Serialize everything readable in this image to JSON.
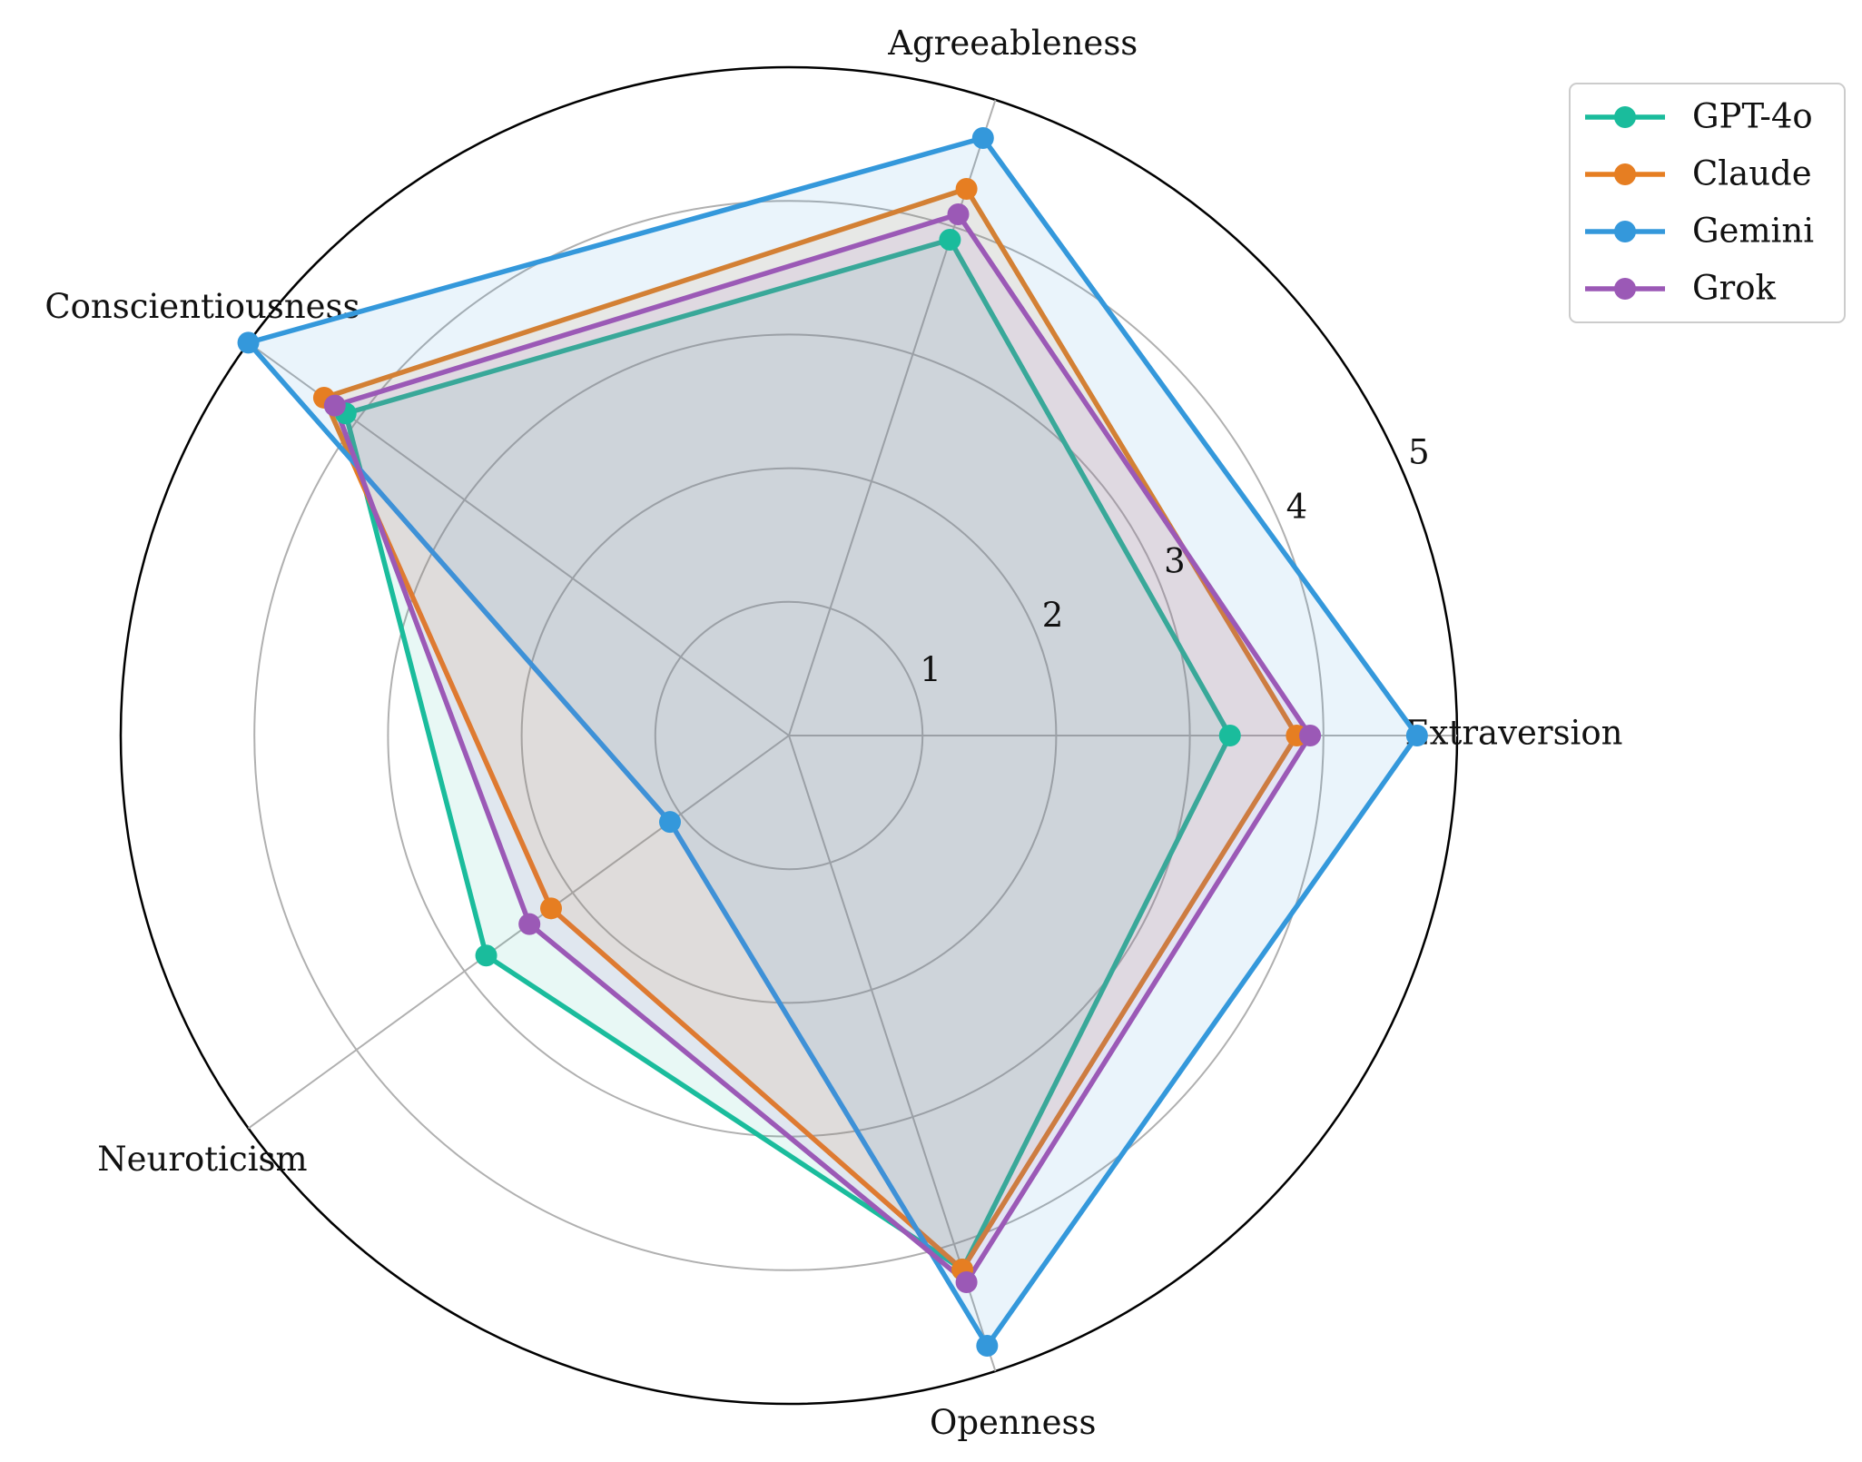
{
  "chart_data": {
    "type": "radar",
    "categories": [
      "Extraversion",
      "Agreeableness",
      "Conscientiousness",
      "Neuroticism",
      "Openness"
    ],
    "series": [
      {
        "name": "GPT-4o",
        "color": "#1abc9c",
        "values": [
          3.3,
          3.9,
          4.1,
          2.8,
          4.2
        ]
      },
      {
        "name": "Claude",
        "color": "#e67e22",
        "values": [
          3.8,
          4.3,
          4.3,
          2.2,
          4.2
        ]
      },
      {
        "name": "Gemini",
        "color": "#3498db",
        "values": [
          4.7,
          4.7,
          5.0,
          1.1,
          4.8
        ]
      },
      {
        "name": "Grok",
        "color": "#9b59b6",
        "values": [
          3.9,
          4.1,
          4.2,
          2.4,
          4.3
        ]
      }
    ],
    "rlim": [
      0,
      5
    ],
    "rticks": [
      1,
      2,
      3,
      4,
      5
    ],
    "grid": true,
    "legend": "upper right"
  }
}
